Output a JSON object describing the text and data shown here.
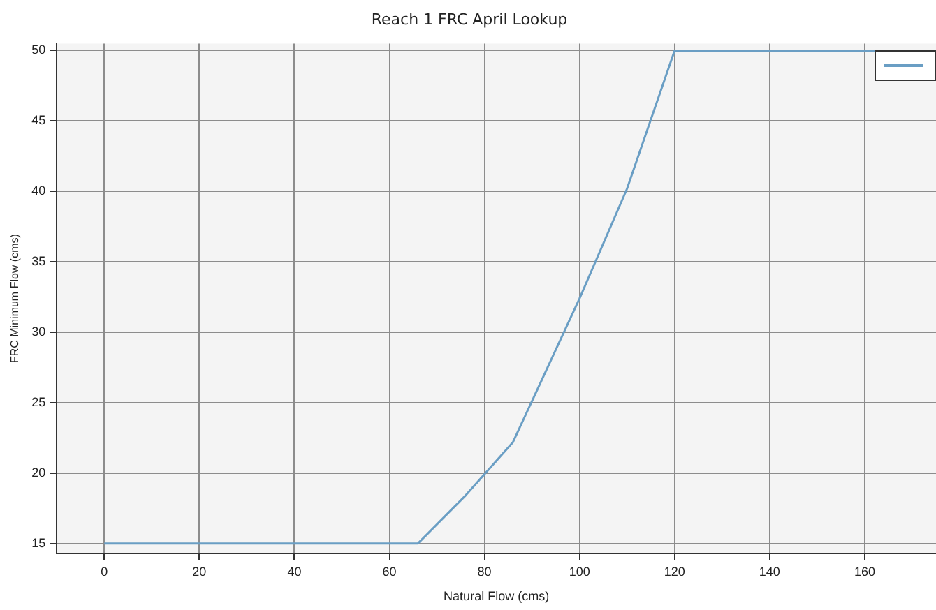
{
  "chart_data": {
    "type": "line",
    "title": "Reach 1 FRC April Lookup",
    "xlabel": "Natural Flow (cms)",
    "ylabel": "FRC Minimum Flow (cms)",
    "x": [
      0,
      66,
      76,
      86,
      100,
      110,
      120,
      175
    ],
    "series": [
      {
        "color": "#6a9ec4",
        "values": [
          15,
          15,
          18.4,
          22.2,
          32.4,
          40.2,
          50,
          50
        ]
      }
    ],
    "xlim": [
      -10,
      175
    ],
    "xticks": [
      0,
      20,
      40,
      60,
      80,
      100,
      120,
      140,
      160
    ],
    "ylim": [
      14.3,
      50.5
    ],
    "yticks": [
      15,
      20,
      25,
      30,
      35,
      40,
      45,
      50
    ],
    "grid": true,
    "marker": "none",
    "line_style": "solid"
  }
}
